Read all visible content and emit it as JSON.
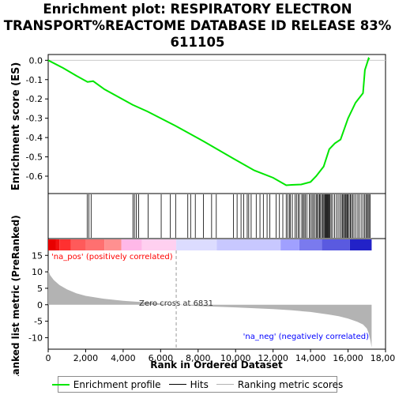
{
  "title": {
    "line1": "Enrichment plot: RESPIRATORY ELECTRON",
    "line2": "TRANSPORT%REACTOME DATABASE ID RELEASE 83%",
    "line3": "611105"
  },
  "colors": {
    "profile": "#00e600",
    "hits": "#000000",
    "metric_fill": "#b3b3b3",
    "pos_text": "#ff0000",
    "neg_text": "#0000ff",
    "frame": "#000000"
  },
  "chart_data": [
    {
      "type": "line",
      "name": "enrichment-profile",
      "ylabel": "Enrichment score (ES)",
      "xlim": [
        0,
        17400
      ],
      "ylim": [
        -0.69,
        0.03
      ],
      "yticks": [
        "0.0",
        "-0.1",
        "-0.2",
        "-0.3",
        "-0.4",
        "-0.5",
        "-0.6"
      ],
      "ytick_values": [
        0.0,
        -0.1,
        -0.2,
        -0.3,
        -0.4,
        -0.5,
        -0.6
      ],
      "x": [
        0,
        800,
        1500,
        2100,
        2400,
        3000,
        4500,
        5300,
        6800,
        8300,
        9900,
        11000,
        12000,
        12700,
        13000,
        13500,
        14000,
        14300,
        14700,
        15000,
        15300,
        15600,
        16000,
        16400,
        16800,
        16900,
        17000,
        17100,
        17150
      ],
      "y": [
        0.0,
        -0.04,
        -0.08,
        -0.112,
        -0.108,
        -0.15,
        -0.23,
        -0.265,
        -0.34,
        -0.42,
        -0.51,
        -0.57,
        -0.608,
        -0.647,
        -0.645,
        -0.643,
        -0.63,
        -0.6,
        -0.55,
        -0.46,
        -0.43,
        -0.41,
        -0.3,
        -0.22,
        -0.17,
        -0.05,
        -0.02,
        0.01,
        0.005
      ],
      "grid": false
    },
    {
      "type": "hits",
      "name": "gene-set-hits",
      "hit_ranks": [
        2080,
        2170,
        2290,
        4520,
        4600,
        4700,
        4830,
        5330,
        6030,
        6520,
        6800,
        7450,
        7600,
        7850,
        8280,
        8720,
        8970,
        9890,
        10080,
        10290,
        10430,
        10620,
        10700,
        10830,
        11100,
        11300,
        11480,
        11680,
        11830,
        12160,
        12340,
        12520,
        12700,
        12780,
        12870,
        12930,
        13030,
        13170,
        13250,
        13340,
        13410,
        13530,
        13600,
        13660,
        13720,
        13810,
        13930,
        14000,
        14080,
        14150,
        14220,
        14300,
        14350,
        14420,
        14480,
        14530,
        14600,
        14660,
        14710,
        14760,
        14800,
        14840,
        14880,
        14920,
        14960,
        15000,
        15040,
        15100,
        15180,
        15280,
        15380,
        15470,
        15560,
        15640,
        15700,
        15760,
        15810,
        15860,
        15900,
        15950,
        16000,
        16060,
        16120,
        16180,
        16250,
        16320,
        16420,
        16520,
        16600,
        16700,
        16800,
        16880,
        16950,
        17010,
        17070,
        17120,
        17180
      ]
    },
    {
      "type": "area",
      "name": "ranked-list-metric",
      "ylabel": "Ranked list metric (PreRanked)",
      "xlabel": "Rank in Ordered Dataset",
      "xlim": [
        0,
        18000
      ],
      "ylim": [
        -13.5,
        16.5
      ],
      "xticks": [
        "0",
        "2,000",
        "4,000",
        "6,000",
        "8,000",
        "10,000",
        "12,000",
        "14,000",
        "16,000",
        "18,000"
      ],
      "xtick_values": [
        0,
        2000,
        4000,
        6000,
        8000,
        10000,
        12000,
        14000,
        16000,
        18000
      ],
      "yticks": [
        "15",
        "10",
        "5",
        "0",
        "-5",
        "-10"
      ],
      "ytick_values": [
        15,
        10,
        5,
        0,
        -5,
        -10
      ],
      "x": [
        0,
        100,
        300,
        600,
        1000,
        1500,
        2000,
        3000,
        4000,
        5000,
        6000,
        6831,
        8000,
        10000,
        12000,
        13000,
        14000,
        15000,
        15500,
        16000,
        16500,
        16800,
        17000,
        17100,
        17200,
        17260
      ],
      "y": [
        10.5,
        9.0,
        7.5,
        6.0,
        4.7,
        3.5,
        2.7,
        1.8,
        1.2,
        0.8,
        0.4,
        0.0,
        -0.4,
        -0.8,
        -1.3,
        -1.7,
        -2.2,
        -3.0,
        -3.5,
        -4.2,
        -5.2,
        -6.0,
        -7.2,
        -8.5,
        -11.0,
        -13.0
      ],
      "annotations": {
        "zero_cross": "Zero cross at 6831",
        "pos_label": "'na_pos' (positively correlated)",
        "neg_label": "'na_neg' (negatively correlated)"
      },
      "zero_cross_rank": 6831
    }
  ],
  "legend": {
    "items": [
      {
        "label": "Enrichment profile",
        "color": "#00e600"
      },
      {
        "label": "Hits",
        "color": "#000000"
      },
      {
        "label": "Ranking metric scores",
        "color": "#b3b3b3"
      }
    ]
  }
}
